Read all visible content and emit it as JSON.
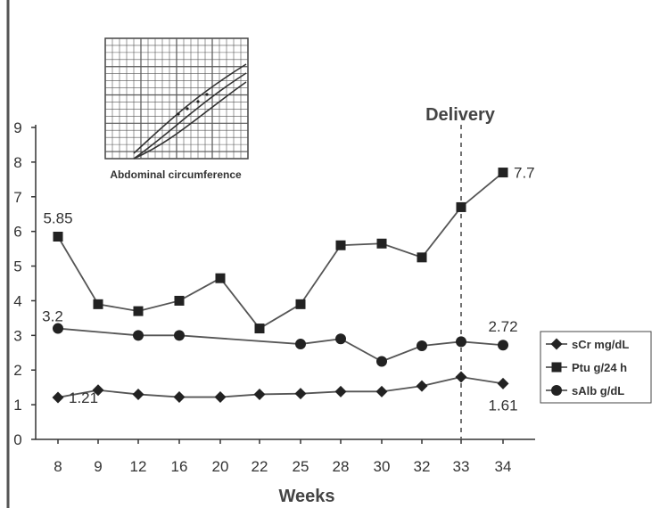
{
  "chart_data": {
    "type": "line",
    "xlabel": "Weeks",
    "ylabel": "",
    "categories": [
      "8",
      "9",
      "12",
      "16",
      "20",
      "22",
      "25",
      "28",
      "30",
      "32",
      "33",
      "34"
    ],
    "ylim": [
      0,
      9
    ],
    "yticks": [
      "0",
      "1",
      "2",
      "3",
      "4",
      "5",
      "6",
      "7",
      "8",
      "9"
    ],
    "grid": false,
    "legend_position": "right",
    "series": [
      {
        "name": "sCr mg/dL",
        "marker": "diamond",
        "values": [
          1.21,
          1.42,
          1.3,
          1.22,
          1.22,
          1.3,
          1.32,
          1.38,
          1.38,
          1.54,
          1.8,
          1.61
        ]
      },
      {
        "name": "Ptu g/24 h",
        "marker": "square",
        "values": [
          5.85,
          3.9,
          3.7,
          4.0,
          4.65,
          3.2,
          3.9,
          5.6,
          5.65,
          5.25,
          6.7,
          7.7
        ]
      },
      {
        "name": "sAlb g/dL",
        "marker": "circle",
        "values": [
          3.2,
          null,
          3.0,
          3.0,
          null,
          null,
          2.75,
          2.9,
          2.25,
          2.7,
          2.82,
          2.72
        ]
      }
    ],
    "data_labels": [
      {
        "series": 1,
        "index": 0,
        "text": "5.85",
        "pos": "above"
      },
      {
        "series": 1,
        "index": 11,
        "text": "7.7",
        "pos": "right"
      },
      {
        "series": 2,
        "index": 0,
        "text": "3.2",
        "pos": "above-left"
      },
      {
        "series": 2,
        "index": 11,
        "text": "2.72",
        "pos": "above"
      },
      {
        "series": 0,
        "index": 0,
        "text": "1.21",
        "pos": "right"
      },
      {
        "series": 0,
        "index": 11,
        "text": "1.61",
        "pos": "below"
      }
    ],
    "annotation": {
      "text": "Delivery",
      "category_index": 10
    }
  },
  "inset": {
    "caption": "Abdominal circumference"
  },
  "colors": {
    "line": "#555555",
    "marker": "#222222",
    "axis": "#333333",
    "inset_grid": "#555555"
  }
}
